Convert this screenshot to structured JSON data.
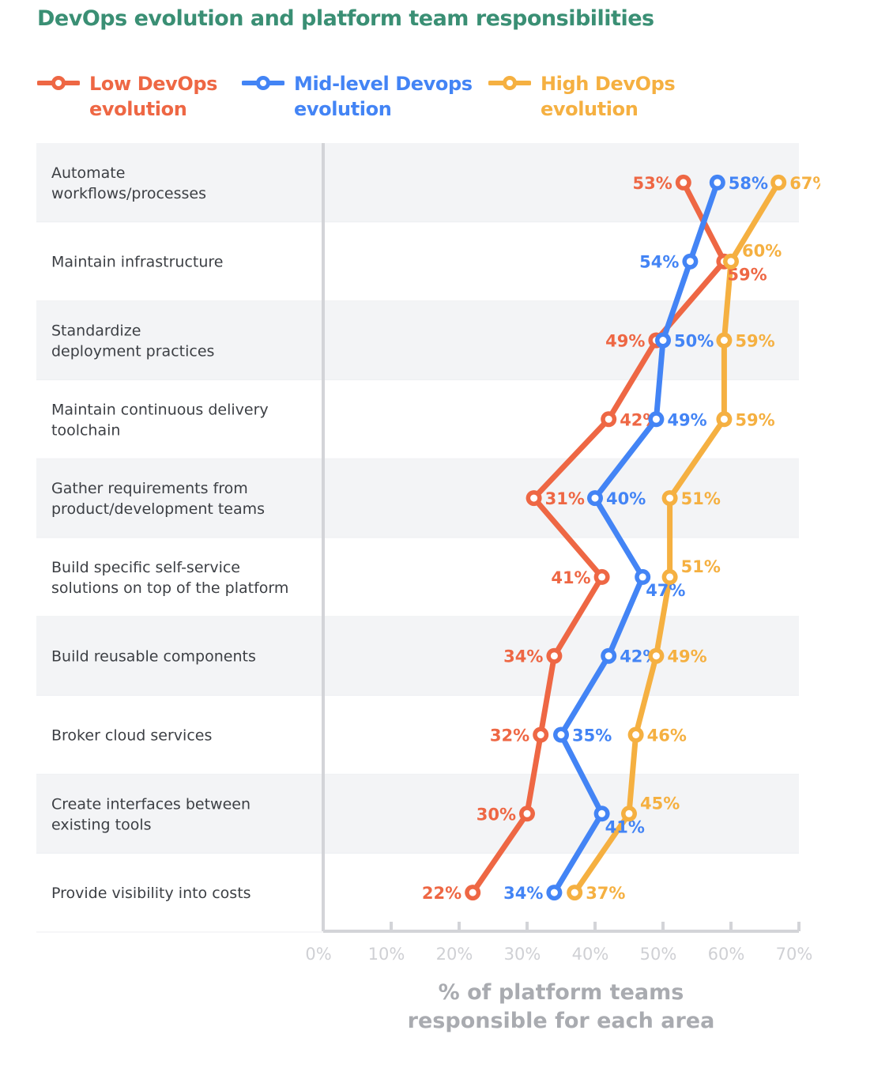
{
  "chart_data": {
    "type": "line",
    "title": "DevOps evolution and platform team responsibilities",
    "xlabel": "% of platform teams responsible for each area",
    "ylabel": "",
    "xlim": [
      0,
      70
    ],
    "x_ticks": [
      "0%",
      "10%",
      "20%",
      "30%",
      "40%",
      "50%",
      "60%",
      "70%"
    ],
    "orientation": "horizontal-values",
    "legend_position": "top",
    "grid": false,
    "categories": [
      "Automate\nworkflows/processes",
      "Maintain infrastructure",
      "Standardize\ndeployment practices",
      "Maintain continuous delivery\ntoolchain",
      "Gather requirements from\nproduct/development teams",
      "Build specific self-service\nsolutions on top of the platform",
      "Build reusable components",
      "Broker cloud services",
      "Create interfaces between\nexisting tools",
      "Provide visibility into costs"
    ],
    "series": [
      {
        "name": "Low DevOps\nevolution",
        "color": "#ee6744",
        "values": [
          53,
          59,
          49,
          42,
          31,
          41,
          34,
          32,
          30,
          22
        ]
      },
      {
        "name": "Mid-level Devops\nevolution",
        "color": "#4384f5",
        "values": [
          58,
          54,
          50,
          49,
          40,
          47,
          42,
          35,
          41,
          34
        ]
      },
      {
        "name": "High DevOps\nevolution",
        "color": "#f5b041",
        "values": [
          67,
          60,
          59,
          59,
          51,
          51,
          49,
          46,
          45,
          37
        ]
      }
    ]
  }
}
